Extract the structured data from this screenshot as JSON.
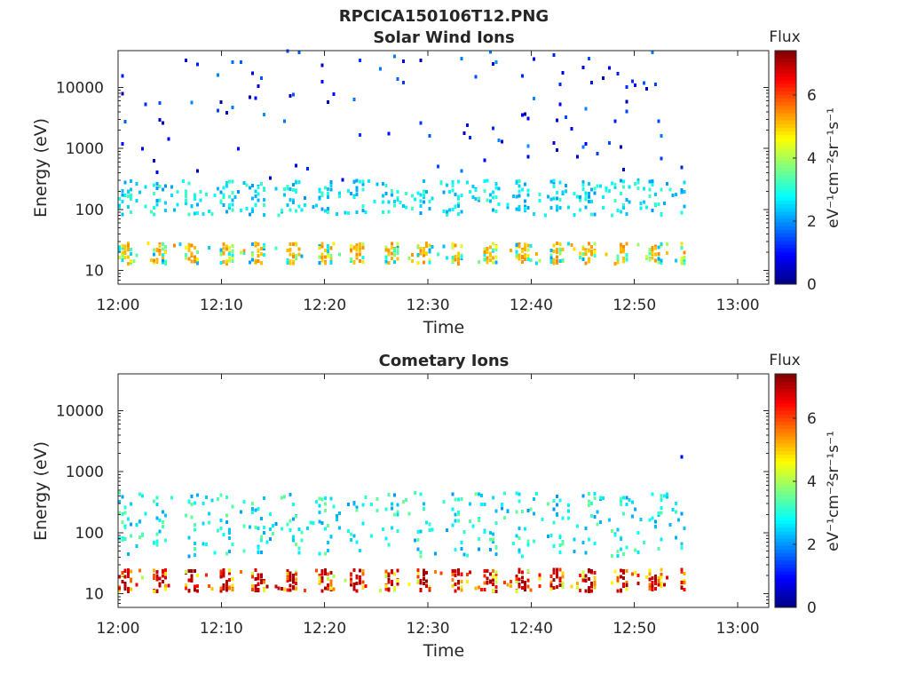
{
  "figure": {
    "title": "RPCICA150106T12.PNG"
  },
  "chart_data": [
    {
      "type": "heatmap",
      "title": "Solar Wind Ions",
      "xlabel": "Time",
      "ylabel": "Energy (eV)",
      "y_scale": "log",
      "xlim": [
        "12:00",
        "13:03"
      ],
      "ylim": [
        6,
        40000
      ],
      "x_ticks": [
        "12:00",
        "12:10",
        "12:20",
        "12:30",
        "12:40",
        "12:50",
        "13:00"
      ],
      "y_ticks": [
        10,
        100,
        1000,
        10000
      ],
      "y_tick_labels": [
        "10",
        "100",
        "1000",
        "10000"
      ],
      "data_time_range": [
        "12:00",
        "12:55"
      ],
      "sweep_period_min": 3.2,
      "colorbar": {
        "label": "Flux",
        "units": "eV⁻¹cm⁻²sr⁻¹s⁻¹",
        "range": [
          0,
          7.4
        ],
        "ticks": [
          0,
          2,
          4,
          6
        ],
        "colormap": "jet"
      },
      "bands": [
        {
          "energy_range": [
            13,
            28
          ],
          "flux_range": [
            2,
            5.5
          ],
          "description": "low-energy band"
        },
        {
          "energy_range": [
            80,
            300
          ],
          "flux_range": [
            2,
            3.3
          ],
          "description": "mid-energy band"
        },
        {
          "energy_range": [
            300,
            40000
          ],
          "flux_range": [
            0.3,
            2
          ],
          "description": "sparse high-energy counts"
        }
      ]
    },
    {
      "type": "heatmap",
      "title": "Cometary Ions",
      "xlabel": "Time",
      "ylabel": "Energy (eV)",
      "y_scale": "log",
      "xlim": [
        "12:00",
        "13:03"
      ],
      "ylim": [
        6,
        40000
      ],
      "x_ticks": [
        "12:00",
        "12:10",
        "12:20",
        "12:30",
        "12:40",
        "12:50",
        "13:00"
      ],
      "y_ticks": [
        10,
        100,
        1000,
        10000
      ],
      "y_tick_labels": [
        "10",
        "100",
        "1000",
        "10000"
      ],
      "data_time_range": [
        "12:00",
        "12:55"
      ],
      "sweep_period_min": 3.2,
      "colorbar": {
        "label": "Flux",
        "units": "eV⁻¹cm⁻²sr⁻¹s⁻¹",
        "range": [
          0,
          7.4
        ],
        "ticks": [
          0,
          2,
          4,
          6
        ],
        "colormap": "jet"
      },
      "bands": [
        {
          "energy_range": [
            11,
            25
          ],
          "flux_range": [
            4,
            7.2
          ],
          "description": "low-energy band"
        },
        {
          "energy_range": [
            40,
            450
          ],
          "flux_range": [
            2,
            3.6
          ],
          "description": "mid-energy band"
        },
        {
          "energy_range": [
            1500,
            4500
          ],
          "flux_range": [
            0.8,
            1.2
          ],
          "description": "isolated high-energy counts"
        }
      ]
    }
  ]
}
